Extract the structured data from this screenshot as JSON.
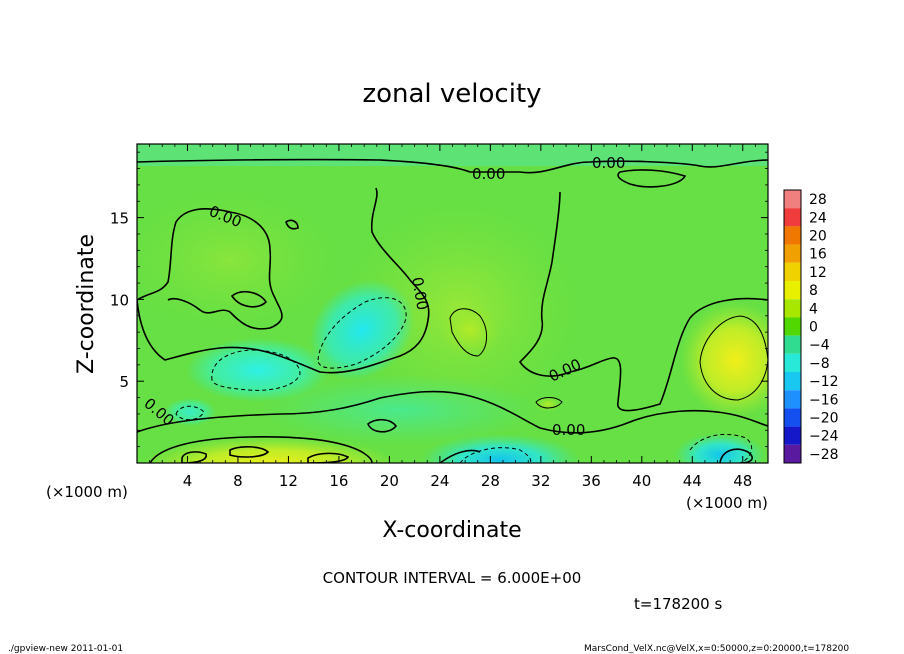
{
  "chart_data": {
    "type": "heatmap",
    "title": "zonal velocity",
    "xlabel": "X-coordinate",
    "ylabel": "Z-coordinate",
    "x_unit_label": "(×1000 m)",
    "y_unit_label": "(×1000 m)",
    "xlim": [
      0,
      50
    ],
    "ylim": [
      0,
      19.5
    ],
    "x_ticks": [
      4,
      8,
      12,
      16,
      20,
      24,
      28,
      32,
      36,
      40,
      44,
      48
    ],
    "y_ticks": [
      5,
      10,
      15
    ],
    "colorbar": {
      "levels": [
        28,
        24,
        20,
        16,
        12,
        8,
        4,
        0,
        -4,
        -8,
        -12,
        -16,
        -20,
        -24,
        -28
      ],
      "labels": [
        "28",
        "24",
        "20",
        "16",
        "12",
        "8",
        "4",
        "0",
        "−4",
        "−8",
        "−12",
        "−16",
        "−20",
        "−24",
        "−28"
      ],
      "colors": [
        "#f07f7f",
        "#f03c3c",
        "#f07800",
        "#f0a000",
        "#f0d200",
        "#e8f000",
        "#a8e800",
        "#50d800",
        "#2fdc90",
        "#28e8d8",
        "#18c8f0",
        "#1e90ff",
        "#1450f0",
        "#1418c8",
        "#5a1aa0"
      ]
    },
    "contour_labels": [
      {
        "text": "0.00",
        "x": 26.8,
        "z": 18.6
      },
      {
        "text": "0.00",
        "x": 37.5,
        "z": 18.7
      },
      {
        "text": "0.00",
        "x": 7.2,
        "z": 15.9
      },
      {
        "text": "0.00",
        "x": 22.3,
        "z": 10.6
      },
      {
        "text": "0.00",
        "x": 33.7,
        "z": 5.9
      },
      {
        "text": "0.00",
        "x": 1.8,
        "z": 2.9
      },
      {
        "text": "0.00",
        "x": 34.0,
        "z": 2.1
      }
    ],
    "contour_interval_text": "CONTOUR INTERVAL = 6.000E+00",
    "time_text": "t=178200  s"
  },
  "footer": {
    "left": "./gpview-new  2011-01-01",
    "right": "MarsCond_VelX.nc@VelX,x=0:50000,z=0:20000,t=178200"
  }
}
